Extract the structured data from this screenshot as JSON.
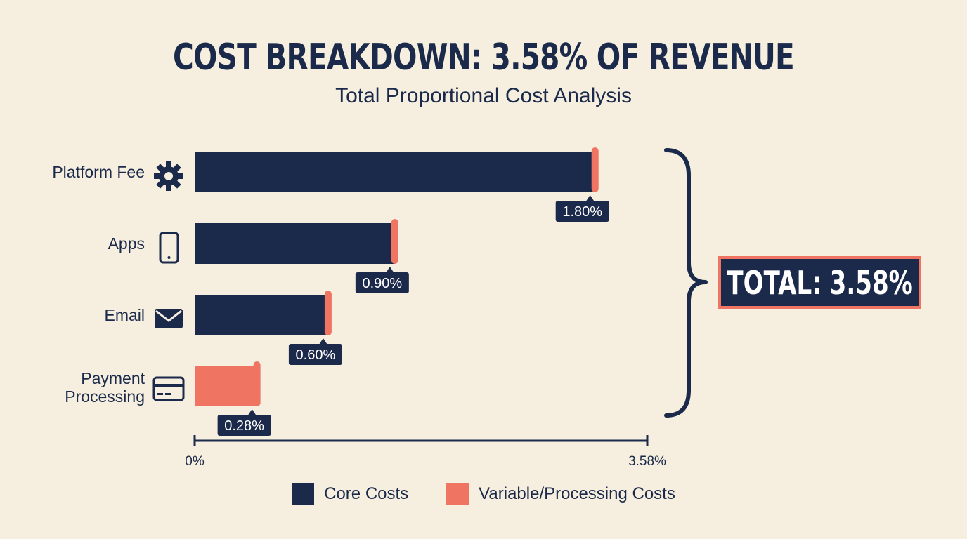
{
  "title": "COST BREAKDOWN: 3.58% OF REVENUE",
  "subtitle": "Total Proportional Cost Analysis",
  "total_label": "TOTAL: 3.58%",
  "colors": {
    "core": "#1b2a4a",
    "variable": "#ef7461",
    "background": "#f6efdf"
  },
  "chart_data": {
    "type": "bar",
    "orientation": "horizontal",
    "title": "COST BREAKDOWN: 3.58% OF REVENUE",
    "subtitle": "Total Proportional Cost Analysis",
    "categories": [
      "Platform Fee",
      "Apps",
      "Email",
      "Payment Processing"
    ],
    "category_icons": [
      "gear-icon",
      "phone-icon",
      "envelope-icon",
      "credit-card-icon"
    ],
    "values": [
      1.8,
      0.9,
      0.6,
      0.28
    ],
    "value_labels": [
      "1.80%",
      "0.90%",
      "0.60%",
      "0.28%"
    ],
    "category_type": [
      "core",
      "core",
      "core",
      "variable"
    ],
    "series": [
      {
        "name": "Core Costs",
        "color": "#1b2a4a"
      },
      {
        "name": "Variable/Processing Costs",
        "color": "#ef7461"
      }
    ],
    "xlim_labels": [
      "0%",
      "3.58%"
    ],
    "xlim": [
      0,
      2.0
    ],
    "total": "TOTAL: 3.58%",
    "legend_position": "bottom",
    "grid": false
  }
}
